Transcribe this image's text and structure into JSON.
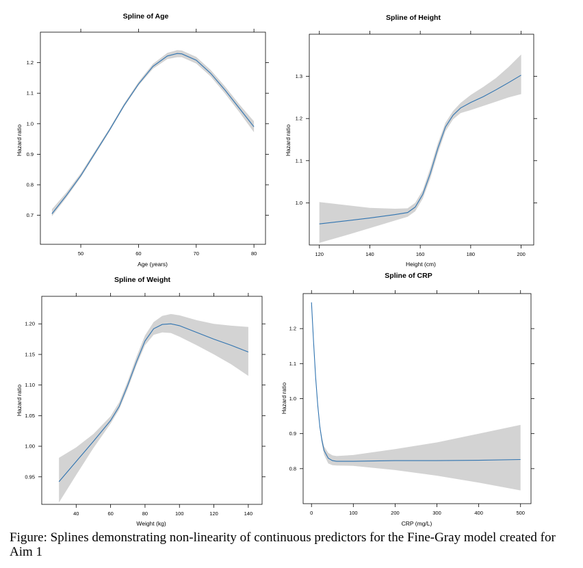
{
  "caption": "Figure: Splines demonstrating non-linearity of continuous predictors for the Fine-Gray model created for Aim 1",
  "colors": {
    "line": "#2f73b0",
    "band": "#d3d3d3",
    "axis": "#000000"
  },
  "chart_data": [
    {
      "type": "line",
      "title": "Spline of Age",
      "xlabel": "Age (years)",
      "ylabel": "Hazard ratio",
      "xlim": [
        43,
        82
      ],
      "ylim": [
        0.605,
        1.3
      ],
      "xticks": [
        50,
        60,
        70,
        80
      ],
      "yticks": [
        0.7,
        0.8,
        0.9,
        1.0,
        1.1,
        1.2
      ],
      "x": [
        45,
        47.5,
        50,
        52.5,
        55,
        57.5,
        60,
        62.5,
        65,
        66.7,
        67.5,
        70,
        72.5,
        75,
        77.5,
        80
      ],
      "y": [
        0.705,
        0.765,
        0.83,
        0.905,
        0.98,
        1.06,
        1.13,
        1.188,
        1.222,
        1.23,
        1.229,
        1.208,
        1.165,
        1.11,
        1.05,
        0.99
      ],
      "lower": [
        0.697,
        0.758,
        0.824,
        0.899,
        0.975,
        1.055,
        1.125,
        1.18,
        1.212,
        1.218,
        1.218,
        1.197,
        1.155,
        1.099,
        1.037,
        0.972
      ],
      "upper": [
        0.72,
        0.775,
        0.838,
        0.912,
        0.986,
        1.066,
        1.137,
        1.196,
        1.232,
        1.241,
        1.24,
        1.219,
        1.176,
        1.122,
        1.063,
        1.008
      ]
    },
    {
      "type": "line",
      "title": "Spline of Height",
      "xlabel": "Height (cm)",
      "ylabel": "Hazard ratio",
      "xlim": [
        116,
        205
      ],
      "ylim": [
        0.9,
        1.4
      ],
      "xticks": [
        120,
        140,
        160,
        180,
        200
      ],
      "yticks": [
        1.0,
        1.1,
        1.2,
        1.3
      ],
      "x": [
        120,
        130,
        140,
        150,
        155,
        158,
        161,
        164,
        167,
        170,
        173,
        176,
        180,
        185,
        190,
        195,
        200
      ],
      "y": [
        0.95,
        0.957,
        0.964,
        0.972,
        0.977,
        0.99,
        1.02,
        1.07,
        1.13,
        1.18,
        1.208,
        1.225,
        1.238,
        1.252,
        1.268,
        1.285,
        1.303
      ],
      "lower": [
        0.905,
        0.922,
        0.94,
        0.958,
        0.967,
        0.98,
        1.01,
        1.058,
        1.118,
        1.17,
        1.198,
        1.213,
        1.22,
        1.23,
        1.24,
        1.25,
        1.258
      ],
      "upper": [
        1.002,
        0.995,
        0.988,
        0.986,
        0.987,
        1.0,
        1.03,
        1.083,
        1.142,
        1.19,
        1.218,
        1.237,
        1.256,
        1.275,
        1.296,
        1.322,
        1.352
      ]
    },
    {
      "type": "line",
      "title": "Spline of Weight",
      "xlabel": "Weight (kg)",
      "ylabel": "Hazard ratio",
      "xlim": [
        20,
        148
      ],
      "ylim": [
        0.905,
        1.245
      ],
      "xticks": [
        40,
        60,
        80,
        100,
        120,
        140
      ],
      "yticks": [
        0.95,
        1.0,
        1.05,
        1.1,
        1.15,
        1.2
      ],
      "x": [
        30,
        40,
        50,
        60,
        65,
        70,
        75,
        80,
        85,
        90,
        95,
        100,
        110,
        120,
        130,
        140
      ],
      "y": [
        0.942,
        0.975,
        1.008,
        1.042,
        1.065,
        1.1,
        1.138,
        1.172,
        1.192,
        1.199,
        1.2,
        1.197,
        1.186,
        1.175,
        1.165,
        1.154
      ],
      "lower": [
        0.908,
        0.953,
        0.997,
        1.037,
        1.06,
        1.094,
        1.132,
        1.165,
        1.182,
        1.186,
        1.185,
        1.179,
        1.165,
        1.15,
        1.134,
        1.115
      ],
      "upper": [
        0.981,
        0.998,
        1.02,
        1.049,
        1.072,
        1.107,
        1.146,
        1.181,
        1.203,
        1.213,
        1.216,
        1.214,
        1.206,
        1.2,
        1.197,
        1.195
      ]
    },
    {
      "type": "line",
      "title": "Spline of CRP",
      "xlabel": "CRP (mg/L)",
      "ylabel": "Hazard ratio",
      "xlim": [
        -20,
        525
      ],
      "ylim": [
        0.7,
        1.3
      ],
      "xticks": [
        0,
        100,
        200,
        300,
        400,
        500
      ],
      "yticks": [
        0.8,
        0.9,
        1.0,
        1.1,
        1.2
      ],
      "x": [
        0,
        5,
        10,
        15,
        20,
        25,
        30,
        40,
        50,
        60,
        100,
        200,
        300,
        400,
        500
      ],
      "y": [
        1.275,
        1.16,
        1.06,
        0.98,
        0.92,
        0.88,
        0.852,
        0.83,
        0.823,
        0.821,
        0.821,
        0.823,
        0.823,
        0.824,
        0.826
      ],
      "lower": [
        1.275,
        1.16,
        1.06,
        0.978,
        0.915,
        0.87,
        0.84,
        0.815,
        0.81,
        0.809,
        0.808,
        0.796,
        0.78,
        0.76,
        0.738
      ],
      "upper": [
        1.275,
        1.16,
        1.06,
        0.982,
        0.925,
        0.89,
        0.864,
        0.845,
        0.838,
        0.836,
        0.839,
        0.856,
        0.875,
        0.9,
        0.925
      ]
    }
  ]
}
